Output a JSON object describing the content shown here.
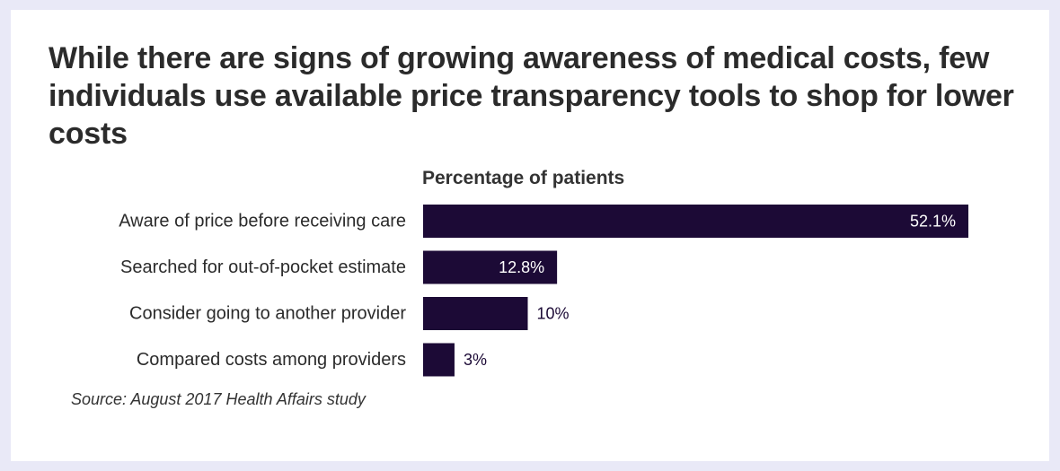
{
  "chart_data": {
    "type": "bar",
    "orientation": "horizontal",
    "title": "While there are signs of growing awareness of medical costs, few individuals use available price transparency tools to shop for lower costs",
    "xlabel": "Percentage of patients",
    "ylabel": "",
    "categories": [
      "Aware of price before receiving care",
      "Searched for out-of-pocket estimate",
      "Consider going to another provider",
      "Compared costs among providers"
    ],
    "values": [
      52.1,
      12.8,
      10,
      3
    ],
    "value_labels": [
      "52.1%",
      "12.8%",
      "10%",
      "3%"
    ],
    "xlim": [
      0,
      52.1
    ],
    "grid": false,
    "legend": "none",
    "bar_color": "#1c0a36",
    "label_inside_color": "#ffffff",
    "label_outside_color": "#1c0a36",
    "source": "Source: August 2017 Health Affairs study"
  }
}
